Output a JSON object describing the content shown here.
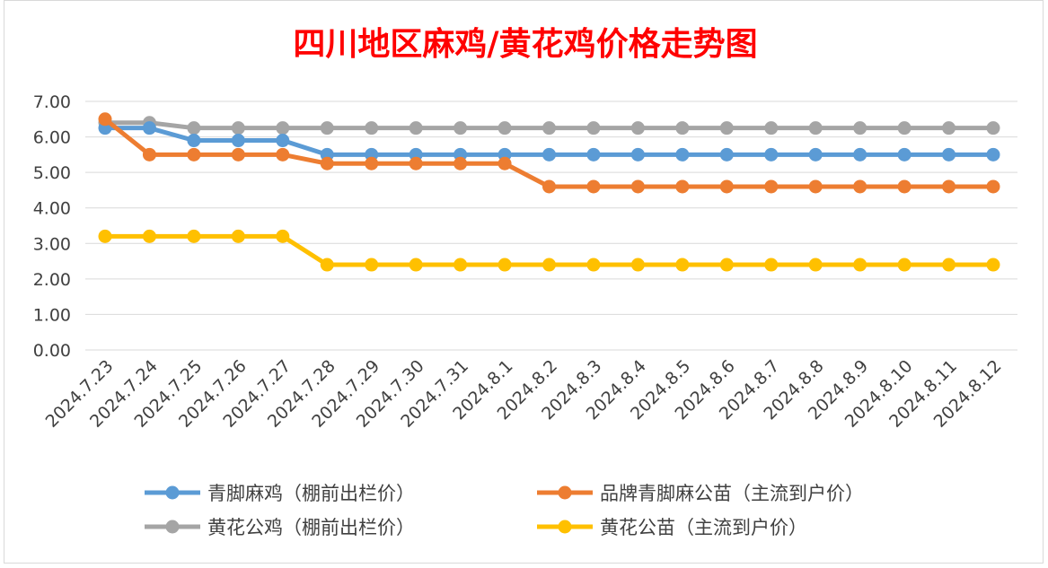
{
  "chart_data": {
    "type": "line",
    "title": "四川地区麻鸡/黄花鸡价格走势图",
    "xlabel": "",
    "ylabel": "",
    "ylim": [
      0,
      7
    ],
    "yticks": [
      "0.00",
      "1.00",
      "2.00",
      "3.00",
      "4.00",
      "5.00",
      "6.00",
      "7.00"
    ],
    "grid": true,
    "legend_position": "bottom",
    "categories": [
      "2024.7.23",
      "2024.7.24",
      "2024.7.25",
      "2024.7.26",
      "2024.7.27",
      "2024.7.28",
      "2024.7.29",
      "2024.7.30",
      "2024.7.31",
      "2024.8.1",
      "2024.8.2",
      "2024.8.3",
      "2024.8.4",
      "2024.8.5",
      "2024.8.6",
      "2024.8.7",
      "2024.8.8",
      "2024.8.9",
      "2024.8.10",
      "2024.8.11",
      "2024.8.12"
    ],
    "series": [
      {
        "name": "青脚麻鸡（棚前出栏价）",
        "color": "#5b9bd5",
        "values": [
          6.25,
          6.25,
          5.9,
          5.9,
          5.9,
          5.5,
          5.5,
          5.5,
          5.5,
          5.5,
          5.5,
          5.5,
          5.5,
          5.5,
          5.5,
          5.5,
          5.5,
          5.5,
          5.5,
          5.5,
          5.5
        ]
      },
      {
        "name": "品牌青脚麻公苗（主流到户价）",
        "color": "#ed7d31",
        "values": [
          6.5,
          5.5,
          5.5,
          5.5,
          5.5,
          5.25,
          5.25,
          5.25,
          5.25,
          5.25,
          4.6,
          4.6,
          4.6,
          4.6,
          4.6,
          4.6,
          4.6,
          4.6,
          4.6,
          4.6,
          4.6
        ]
      },
      {
        "name": "黄花公鸡（棚前出栏价）",
        "color": "#a5a5a5",
        "values": [
          6.4,
          6.4,
          6.25,
          6.25,
          6.25,
          6.25,
          6.25,
          6.25,
          6.25,
          6.25,
          6.25,
          6.25,
          6.25,
          6.25,
          6.25,
          6.25,
          6.25,
          6.25,
          6.25,
          6.25,
          6.25
        ]
      },
      {
        "name": "黄花公苗（主流到户价）",
        "color": "#ffc000",
        "values": [
          3.2,
          3.2,
          3.2,
          3.2,
          3.2,
          2.4,
          2.4,
          2.4,
          2.4,
          2.4,
          2.4,
          2.4,
          2.4,
          2.4,
          2.4,
          2.4,
          2.4,
          2.4,
          2.4,
          2.4,
          2.4
        ]
      }
    ],
    "draw_order": [
      2,
      0,
      1,
      3
    ]
  }
}
